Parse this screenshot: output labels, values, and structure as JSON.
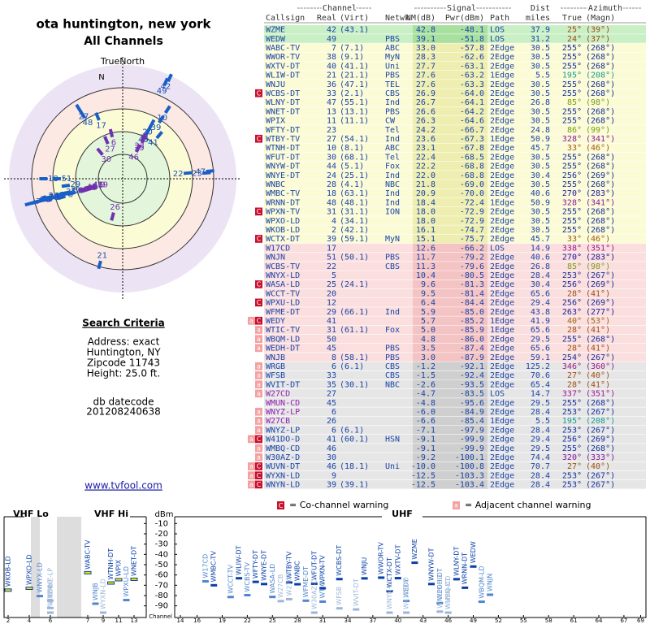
{
  "header": {
    "title": "ota huntington, new york",
    "subtitle": "All Channels",
    "north": "TrueNorth",
    "n": "N"
  },
  "search": {
    "title": "Search Criteria",
    "lines": [
      "Address: exact",
      "Huntington, NY",
      "Zipcode 11743",
      "Height: 25.0 ft."
    ],
    "datecode_label": "db datecode",
    "datecode": "201208240638"
  },
  "link": "www.tvfool.com",
  "table": {
    "groups": [
      "Channel",
      "Signal",
      "Dist",
      "Azimuth"
    ],
    "columns": [
      "Callsign",
      "Real",
      "(Virt)",
      "Netwk",
      "NM(dB)",
      "Pwr(dBm)",
      "Path",
      "miles",
      "True",
      "(Magn)"
    ],
    "rows": [
      {
        "cells": [
          "WZME",
          "42",
          "(43.1)",
          null,
          "42.8",
          "-48.1",
          "LOS",
          "37.9",
          "25°",
          "(39°)"
        ]
      },
      {
        "cells": [
          "WEDW",
          "49",
          null,
          "PBS",
          "39.1",
          "-51.8",
          "LOS",
          "31.2",
          "24°",
          "(37°)"
        ]
      },
      {
        "cells": [
          "WABC-TV",
          "7",
          "(7.1)",
          "ABC",
          "33.0",
          "-57.8",
          "2Edge",
          "30.5",
          "255°",
          "(268°)"
        ]
      },
      {
        "cells": [
          "WWOR-TV",
          "38",
          "(9.1)",
          "MyN",
          "28.3",
          "-62.6",
          "2Edge",
          "30.5",
          "255°",
          "(268°)"
        ]
      },
      {
        "cells": [
          "WXTV-DT",
          "40",
          "(41.1)",
          "Uni",
          "27.7",
          "-63.1",
          "2Edge",
          "30.5",
          "255°",
          "(268°)"
        ]
      },
      {
        "cells": [
          "WLIW-DT",
          "21",
          "(21.1)",
          "PBS",
          "27.6",
          "-63.2",
          "1Edge",
          "5.5",
          "195°",
          "(208°)"
        ]
      },
      {
        "cells": [
          "WNJU",
          "36",
          "(47.1)",
          "TEL",
          "27.6",
          "-63.3",
          "2Edge",
          "30.5",
          "255°",
          "(268°)"
        ]
      },
      {
        "flags": [
          "C"
        ],
        "cells": [
          "WCBS-DT",
          "33",
          "(2.1)",
          "CBS",
          "26.9",
          "-64.0",
          "2Edge",
          "30.5",
          "255°",
          "(268°)"
        ]
      },
      {
        "cells": [
          "WLNY-DT",
          "47",
          "(55.1)",
          "Ind",
          "26.7",
          "-64.1",
          "2Edge",
          "26.8",
          "85°",
          "(98°)"
        ]
      },
      {
        "cells": [
          "WNET-DT",
          "13",
          "(13.1)",
          "PBS",
          "26.6",
          "-64.2",
          "2Edge",
          "30.5",
          "255°",
          "(268°)"
        ]
      },
      {
        "cells": [
          "WPIX",
          "11",
          "(11.1)",
          "CW",
          "26.3",
          "-64.6",
          "2Edge",
          "30.5",
          "255°",
          "(268°)"
        ]
      },
      {
        "cells": [
          "WFTY-DT",
          "23",
          null,
          "Tel",
          "24.2",
          "-66.7",
          "2Edge",
          "24.8",
          "86°",
          "(99°)"
        ]
      },
      {
        "flags": [
          "C"
        ],
        "cells": [
          "WTBY-TV",
          "27",
          "(54.1)",
          "Ind",
          "23.6",
          "-67.3",
          "1Edge",
          "50.9",
          "328°",
          "(341°)"
        ]
      },
      {
        "cells": [
          "WTNH-DT",
          "10",
          "(8.1)",
          "ABC",
          "23.1",
          "-67.8",
          "2Edge",
          "45.7",
          "33°",
          "(46°)"
        ]
      },
      {
        "cells": [
          "WFUT-DT",
          "30",
          "(68.1)",
          "Tel",
          "22.4",
          "-68.5",
          "2Edge",
          "30.5",
          "255°",
          "(268°)"
        ]
      },
      {
        "cells": [
          "WNYW-DT",
          "44",
          "(5.1)",
          "Fox",
          "22.2",
          "-68.8",
          "2Edge",
          "30.5",
          "255°",
          "(268°)"
        ]
      },
      {
        "cells": [
          "WNYE-DT",
          "24",
          "(25.1)",
          "Ind",
          "22.0",
          "-68.8",
          "2Edge",
          "30.4",
          "256°",
          "(269°)"
        ]
      },
      {
        "cells": [
          "WNBC",
          "28",
          "(4.1)",
          "NBC",
          "21.8",
          "-69.0",
          "2Edge",
          "30.5",
          "255°",
          "(268°)"
        ]
      },
      {
        "cells": [
          "WMBC-TV",
          "18",
          "(63.1)",
          "Ind",
          "20.9",
          "-70.0",
          "2Edge",
          "40.6",
          "270°",
          "(283°)"
        ]
      },
      {
        "cells": [
          "WRNN-DT",
          "48",
          "(48.1)",
          "Ind",
          "18.4",
          "-72.4",
          "1Edge",
          "50.9",
          "328°",
          "(341°)"
        ]
      },
      {
        "flags": [
          "C"
        ],
        "cells": [
          "WPXN-TV",
          "31",
          "(31.1)",
          "ION",
          "18.0",
          "-72.9",
          "2Edge",
          "30.5",
          "255°",
          "(268°)"
        ]
      },
      {
        "cells": [
          "WPXO-LD",
          "4",
          "(34.1)",
          null,
          "18.0",
          "-72.9",
          "2Edge",
          "30.5",
          "255°",
          "(268°)"
        ]
      },
      {
        "cells": [
          "WKOB-LD",
          "2",
          "(42.1)",
          null,
          "16.1",
          "-74.7",
          "2Edge",
          "30.5",
          "255°",
          "(268°)"
        ]
      },
      {
        "flags": [
          "C"
        ],
        "cells": [
          "WCTX-DT",
          "39",
          "(59.1)",
          "MyN",
          "15.1",
          "-75.7",
          "2Edge",
          "45.7",
          "33°",
          "(46°)"
        ]
      },
      {
        "cells": [
          "W17CD",
          "17",
          null,
          null,
          "12.6",
          "-66.2",
          "LOS",
          "14.9",
          "338°",
          "(351°)"
        ]
      },
      {
        "cells": [
          "WNJN",
          "51",
          "(50.1)",
          "PBS",
          "11.7",
          "-79.2",
          "2Edge",
          "40.6",
          "270°",
          "(283°)"
        ]
      },
      {
        "cells": [
          "WCBS-TV",
          "22",
          null,
          "CBS",
          "11.3",
          "-79.6",
          "2Edge",
          "26.8",
          "85°",
          "(98°)"
        ]
      },
      {
        "cells": [
          "WNYX-LD",
          "5",
          null,
          null,
          "10.4",
          "-80.5",
          "2Edge",
          "28.4",
          "253°",
          "(267°)"
        ]
      },
      {
        "flags": [
          "C"
        ],
        "cells": [
          "WASA-LD",
          "25",
          "(24.1)",
          null,
          "9.6",
          "-81.3",
          "2Edge",
          "30.4",
          "256°",
          "(269°)"
        ]
      },
      {
        "cells": [
          "WCCT-TV",
          "20",
          null,
          null,
          "9.5",
          "-81.4",
          "2Edge",
          "65.6",
          "28°",
          "(41°)"
        ]
      },
      {
        "flags": [
          "C"
        ],
        "cells": [
          "WPXU-LD",
          "12",
          null,
          null,
          "6.4",
          "-84.4",
          "2Edge",
          "29.4",
          "256°",
          "(269°)"
        ]
      },
      {
        "cells": [
          "WFME-DT",
          "29",
          "(66.1)",
          "Ind",
          "5.9",
          "-85.0",
          "2Edge",
          "43.8",
          "263°",
          "(277°)"
        ]
      },
      {
        "flags": [
          "C",
          "a"
        ],
        "cells": [
          "WEDY",
          "41",
          null,
          null,
          "5.7",
          "-85.2",
          "1Edge",
          "41.9",
          "40°",
          "(53°)"
        ]
      },
      {
        "flags": [
          "a"
        ],
        "cells": [
          "WTIC-TV",
          "31",
          "(61.1)",
          "Fox",
          "5.0",
          "-85.9",
          "1Edge",
          "65.6",
          "28°",
          "(41°)"
        ]
      },
      {
        "flags": [
          "a"
        ],
        "cells": [
          "WBQM-LD",
          "50",
          null,
          null,
          "4.8",
          "-86.0",
          "2Edge",
          "29.5",
          "255°",
          "(268°)"
        ]
      },
      {
        "flags": [
          "a"
        ],
        "cells": [
          "WEDH-DT",
          "45",
          null,
          "PBS",
          "3.5",
          "-87.4",
          "2Edge",
          "65.6",
          "28°",
          "(41°)"
        ]
      },
      {
        "cells": [
          "WNJB",
          "8",
          "(58.1)",
          "PBS",
          "3.0",
          "-87.9",
          "2Edge",
          "59.1",
          "254°",
          "(267°)"
        ]
      },
      {
        "flags": [
          "a"
        ],
        "cells": [
          "WRGB",
          "6",
          "(6.1)",
          "CBS",
          "-1.2",
          "-92.1",
          "2Edge",
          "125.2",
          "346°",
          "(360°)"
        ]
      },
      {
        "flags": [
          "a"
        ],
        "cells": [
          "WFSB",
          "33",
          null,
          "CBS",
          "-1.5",
          "-92.4",
          "2Edge",
          "70.6",
          "27°",
          "(40°)"
        ]
      },
      {
        "flags": [
          "a"
        ],
        "cells": [
          "WVIT-DT",
          "35",
          "(30.1)",
          "NBC",
          "-2.6",
          "-93.5",
          "2Edge",
          "65.4",
          "28°",
          "(41°)"
        ]
      },
      {
        "flags": [
          "a"
        ],
        "cells": [
          "W27CD",
          "27",
          null,
          null,
          "-4.7",
          "-83.5",
          "LOS",
          "14.7",
          "337°",
          "(351°)"
        ]
      },
      {
        "cells": [
          "WMUN-CD",
          "45",
          null,
          null,
          "-4.8",
          "-95.6",
          "2Edge",
          "29.5",
          "255°",
          "(268°)"
        ]
      },
      {
        "flags": [
          "a"
        ],
        "cells": [
          "WNYZ-LP",
          "6",
          null,
          null,
          "-6.0",
          "-84.9",
          "2Edge",
          "28.4",
          "253°",
          "(267°)"
        ]
      },
      {
        "flags": [
          "a"
        ],
        "cells": [
          "W27CB",
          "26",
          null,
          null,
          "-6.6",
          "-85.4",
          "1Edge",
          "5.5",
          "195°",
          "(208°)"
        ]
      },
      {
        "flags": [
          "a"
        ],
        "cells": [
          "WNYZ-LP",
          "6",
          "(6.1)",
          null,
          "-7.1",
          "-97.9",
          "2Edge",
          "28.4",
          "253°",
          "(267°)"
        ]
      },
      {
        "flags": [
          "C",
          "a"
        ],
        "cells": [
          "W41DO-D",
          "41",
          "(60.1)",
          "HSN",
          "-9.1",
          "-99.9",
          "2Edge",
          "29.4",
          "256°",
          "(269°)"
        ]
      },
      {
        "flags": [
          "a"
        ],
        "cells": [
          "WMBQ-CD",
          "46",
          null,
          null,
          "-9.1",
          "-99.9",
          "2Edge",
          "29.5",
          "255°",
          "(268°)"
        ]
      },
      {
        "flags": [
          "a"
        ],
        "cells": [
          "W30AZ-D",
          "30",
          null,
          null,
          "-9.2",
          "-100.1",
          "2Edge",
          "74.4",
          "320°",
          "(333°)"
        ]
      },
      {
        "flags": [
          "C",
          "a"
        ],
        "cells": [
          "WUVN-DT",
          "46",
          "(18.1)",
          "Uni",
          "-10.0",
          "-100.8",
          "2Edge",
          "70.7",
          "27°",
          "(40°)"
        ]
      },
      {
        "flags": [
          "C",
          "a"
        ],
        "cells": [
          "WYXN-LD",
          "9",
          null,
          null,
          "-12.5",
          "-103.3",
          "2Edge",
          "28.4",
          "253°",
          "(267°)"
        ]
      },
      {
        "flags": [
          "C",
          "a"
        ],
        "cells": [
          "WNYN-LD",
          "39",
          "(39.1)",
          null,
          "-12.5",
          "-103.4",
          "2Edge",
          "28.4",
          "253°",
          "(267°)"
        ]
      }
    ]
  },
  "legend": {
    "co_icon": "C",
    "co": "= Co-channel warning",
    "adj_icon": "a",
    "adj": "= Adjacent channel warning"
  },
  "spectrum": {
    "bands": [
      "VHF Lo",
      "VHF Hi",
      "UHF"
    ],
    "unit": "dBm",
    "ylim": [
      -95,
      -5
    ],
    "yticks": [
      -10,
      -20,
      -30,
      -40,
      -50,
      -60,
      -70,
      -80,
      -90
    ],
    "channel_label": "Channel",
    "vhf_ticks": [
      2,
      4,
      6,
      7,
      9,
      11,
      13
    ],
    "uhf_ticks": [
      14,
      16,
      19,
      22,
      25,
      28,
      31,
      34,
      37,
      40,
      43,
      46,
      49,
      52,
      55,
      58,
      61,
      64,
      67,
      69
    ]
  }
}
